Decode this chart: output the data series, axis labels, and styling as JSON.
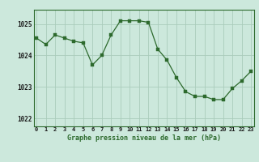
{
  "x": [
    0,
    1,
    2,
    3,
    4,
    5,
    6,
    7,
    8,
    9,
    10,
    11,
    12,
    13,
    14,
    15,
    16,
    17,
    18,
    19,
    20,
    21,
    22,
    23
  ],
  "y": [
    1024.55,
    1024.35,
    1024.65,
    1024.55,
    1024.45,
    1024.4,
    1023.7,
    1024.0,
    1024.65,
    1025.1,
    1025.1,
    1025.1,
    1025.05,
    1024.2,
    1023.85,
    1023.3,
    1022.85,
    1022.7,
    1022.7,
    1022.6,
    1022.6,
    1022.95,
    1023.2,
    1023.5
  ],
  "line_color": "#2d6a2d",
  "marker_color": "#2d6a2d",
  "bg_color": "#cce8dc",
  "plot_bg_color": "#cce8dc",
  "grid_color": "#aaccbb",
  "border_color": "#2d6a2d",
  "xlabel": "Graphe pression niveau de la mer (hPa)",
  "xlabel_color": "#2d6a2d",
  "ytick_labels": [
    "1022",
    "1023",
    "1024",
    "1025"
  ],
  "ytick_values": [
    1022,
    1023,
    1024,
    1025
  ],
  "xtick_labels": [
    "0",
    "1",
    "2",
    "3",
    "4",
    "5",
    "6",
    "7",
    "8",
    "9",
    "10",
    "11",
    "12",
    "13",
    "14",
    "15",
    "16",
    "17",
    "18",
    "19",
    "20",
    "21",
    "22",
    "23"
  ],
  "ylim": [
    1021.75,
    1025.45
  ],
  "xlim": [
    -0.3,
    23.3
  ]
}
